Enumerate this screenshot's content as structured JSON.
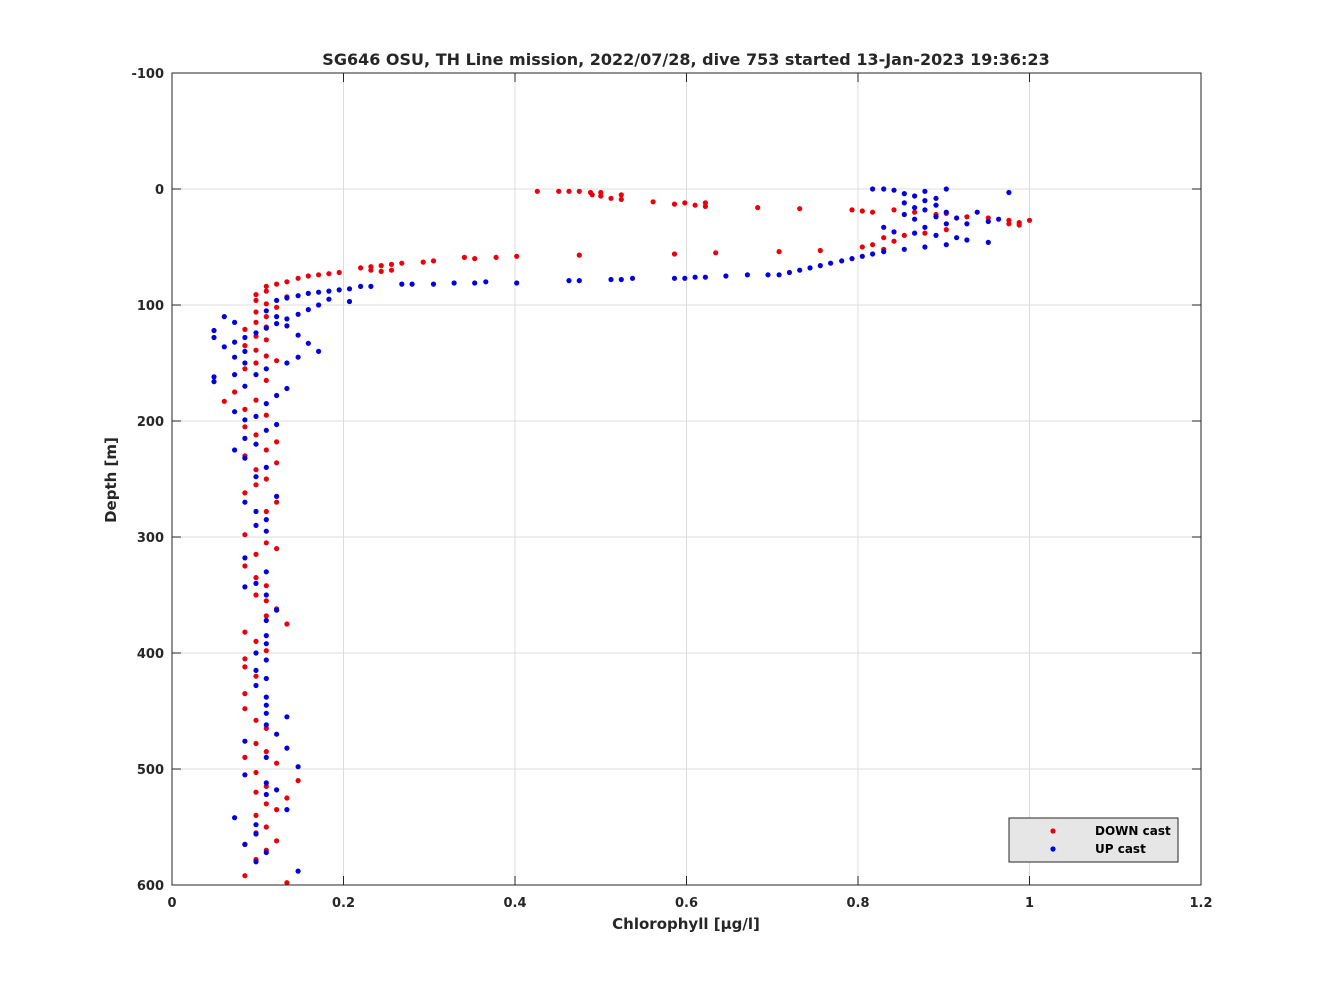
{
  "chart_data": {
    "type": "scatter",
    "title": "SG646 OSU, TH Line mission, 2022/07/28, dive 753 started 13-Jan-2023 19:36:23",
    "xlabel": "Chlorophyll [μg/l]",
    "ylabel": "Depth [m]",
    "xlim": [
      0,
      1.2
    ],
    "ylim": [
      -100,
      600
    ],
    "y_reversed": true,
    "grid": true,
    "legend_position": "bottom-right",
    "x_ticks": [
      "0",
      "0.2",
      "0.4",
      "0.6",
      "0.8",
      "1",
      "1.2"
    ],
    "y_ticks": [
      "-100",
      "0",
      "100",
      "200",
      "300",
      "400",
      "500",
      "600"
    ],
    "series": [
      {
        "name": "DOWN cast",
        "color": "#e8000b",
        "points": [
          [
            0.426,
            2
          ],
          [
            0.451,
            2
          ],
          [
            0.463,
            2
          ],
          [
            0.475,
            2
          ],
          [
            0.488,
            3
          ],
          [
            0.49,
            5
          ],
          [
            0.5,
            3
          ],
          [
            0.5,
            6
          ],
          [
            0.512,
            8
          ],
          [
            0.524,
            5
          ],
          [
            0.524,
            9
          ],
          [
            0.561,
            11
          ],
          [
            0.586,
            13
          ],
          [
            0.598,
            12
          ],
          [
            0.61,
            14
          ],
          [
            0.622,
            12
          ],
          [
            0.622,
            15
          ],
          [
            0.683,
            16
          ],
          [
            0.732,
            17
          ],
          [
            0.793,
            18
          ],
          [
            0.805,
            19
          ],
          [
            0.817,
            20
          ],
          [
            0.842,
            18
          ],
          [
            0.866,
            20
          ],
          [
            0.891,
            22
          ],
          [
            0.903,
            21
          ],
          [
            0.927,
            24
          ],
          [
            0.952,
            25
          ],
          [
            0.976,
            27
          ],
          [
            0.988,
            29
          ],
          [
            1.0,
            27
          ],
          [
            0.976,
            30
          ],
          [
            0.988,
            31
          ],
          [
            0.903,
            35
          ],
          [
            0.878,
            38
          ],
          [
            0.854,
            40
          ],
          [
            0.83,
            42
          ],
          [
            0.842,
            45
          ],
          [
            0.817,
            48
          ],
          [
            0.805,
            50
          ],
          [
            0.83,
            52
          ],
          [
            0.756,
            53
          ],
          [
            0.708,
            54
          ],
          [
            0.634,
            55
          ],
          [
            0.586,
            56
          ],
          [
            0.475,
            57
          ],
          [
            0.402,
            58
          ],
          [
            0.378,
            59
          ],
          [
            0.353,
            60
          ],
          [
            0.341,
            59
          ],
          [
            0.305,
            62
          ],
          [
            0.293,
            63
          ],
          [
            0.268,
            64
          ],
          [
            0.256,
            65
          ],
          [
            0.244,
            66
          ],
          [
            0.232,
            67
          ],
          [
            0.22,
            68
          ],
          [
            0.232,
            70
          ],
          [
            0.244,
            71
          ],
          [
            0.256,
            70
          ],
          [
            0.195,
            72
          ],
          [
            0.183,
            73
          ],
          [
            0.171,
            74
          ],
          [
            0.159,
            75
          ],
          [
            0.147,
            77
          ],
          [
            0.134,
            80
          ],
          [
            0.122,
            82
          ],
          [
            0.11,
            84
          ],
          [
            0.11,
            88
          ],
          [
            0.098,
            91
          ],
          [
            0.134,
            93
          ],
          [
            0.098,
            96
          ],
          [
            0.11,
            99
          ],
          [
            0.122,
            102
          ],
          [
            0.098,
            106
          ],
          [
            0.11,
            110
          ],
          [
            0.098,
            115
          ],
          [
            0.11,
            119
          ],
          [
            0.085,
            121
          ],
          [
            0.098,
            127
          ],
          [
            0.11,
            130
          ],
          [
            0.085,
            135
          ],
          [
            0.098,
            139
          ],
          [
            0.11,
            144
          ],
          [
            0.122,
            148
          ],
          [
            0.098,
            150
          ],
          [
            0.085,
            155
          ],
          [
            0.11,
            165
          ],
          [
            0.073,
            175
          ],
          [
            0.098,
            182
          ],
          [
            0.085,
            190
          ],
          [
            0.061,
            183
          ],
          [
            0.11,
            195
          ],
          [
            0.085,
            205
          ],
          [
            0.098,
            212
          ],
          [
            0.122,
            218
          ],
          [
            0.11,
            225
          ],
          [
            0.085,
            230
          ],
          [
            0.122,
            236
          ],
          [
            0.098,
            242
          ],
          [
            0.11,
            250
          ],
          [
            0.098,
            255
          ],
          [
            0.085,
            262
          ],
          [
            0.122,
            270
          ],
          [
            0.11,
            278
          ],
          [
            0.085,
            298
          ],
          [
            0.11,
            305
          ],
          [
            0.122,
            310
          ],
          [
            0.098,
            315
          ],
          [
            0.085,
            325
          ],
          [
            0.098,
            335
          ],
          [
            0.11,
            342
          ],
          [
            0.098,
            350
          ],
          [
            0.11,
            355
          ],
          [
            0.122,
            362
          ],
          [
            0.11,
            368
          ],
          [
            0.134,
            375
          ],
          [
            0.085,
            382
          ],
          [
            0.098,
            390
          ],
          [
            0.11,
            398
          ],
          [
            0.085,
            405
          ],
          [
            0.085,
            412
          ],
          [
            0.098,
            420
          ],
          [
            0.085,
            435
          ],
          [
            0.085,
            448
          ],
          [
            0.098,
            458
          ],
          [
            0.11,
            465
          ],
          [
            0.098,
            478
          ],
          [
            0.11,
            485
          ],
          [
            0.085,
            490
          ],
          [
            0.122,
            495
          ],
          [
            0.098,
            503
          ],
          [
            0.147,
            510
          ],
          [
            0.11,
            515
          ],
          [
            0.098,
            520
          ],
          [
            0.134,
            525
          ],
          [
            0.11,
            530
          ],
          [
            0.122,
            535
          ],
          [
            0.098,
            540
          ],
          [
            0.11,
            550
          ],
          [
            0.098,
            555
          ],
          [
            0.122,
            562
          ],
          [
            0.085,
            565
          ],
          [
            0.11,
            570
          ],
          [
            0.098,
            578
          ],
          [
            0.085,
            592
          ],
          [
            0.134,
            598
          ]
        ]
      },
      {
        "name": "UP cast",
        "color": "#0000e0",
        "points": [
          [
            0.817,
            0
          ],
          [
            0.83,
            0
          ],
          [
            0.842,
            1
          ],
          [
            0.903,
            0
          ],
          [
            0.878,
            2
          ],
          [
            0.854,
            4
          ],
          [
            0.866,
            6
          ],
          [
            0.891,
            8
          ],
          [
            0.878,
            10
          ],
          [
            0.854,
            12
          ],
          [
            0.891,
            14
          ],
          [
            0.866,
            16
          ],
          [
            0.878,
            18
          ],
          [
            0.903,
            20
          ],
          [
            0.854,
            22
          ],
          [
            0.891,
            24
          ],
          [
            0.915,
            25
          ],
          [
            0.866,
            26
          ],
          [
            0.976,
            3
          ],
          [
            0.939,
            20
          ],
          [
            0.927,
            30
          ],
          [
            0.952,
            28
          ],
          [
            0.964,
            26
          ],
          [
            0.903,
            30
          ],
          [
            0.878,
            33
          ],
          [
            0.83,
            33
          ],
          [
            0.842,
            37
          ],
          [
            0.866,
            38
          ],
          [
            0.891,
            40
          ],
          [
            0.915,
            42
          ],
          [
            0.927,
            44
          ],
          [
            0.952,
            46
          ],
          [
            0.903,
            48
          ],
          [
            0.878,
            50
          ],
          [
            0.854,
            52
          ],
          [
            0.83,
            54
          ],
          [
            0.817,
            56
          ],
          [
            0.805,
            58
          ],
          [
            0.793,
            60
          ],
          [
            0.781,
            62
          ],
          [
            0.768,
            64
          ],
          [
            0.756,
            66
          ],
          [
            0.744,
            68
          ],
          [
            0.732,
            70
          ],
          [
            0.72,
            72
          ],
          [
            0.708,
            74
          ],
          [
            0.695,
            74
          ],
          [
            0.671,
            74
          ],
          [
            0.646,
            75
          ],
          [
            0.622,
            76
          ],
          [
            0.61,
            76
          ],
          [
            0.598,
            77
          ],
          [
            0.586,
            77
          ],
          [
            0.537,
            77
          ],
          [
            0.524,
            78
          ],
          [
            0.512,
            78
          ],
          [
            0.475,
            79
          ],
          [
            0.463,
            79
          ],
          [
            0.402,
            81
          ],
          [
            0.366,
            80
          ],
          [
            0.353,
            81
          ],
          [
            0.329,
            81
          ],
          [
            0.305,
            82
          ],
          [
            0.28,
            82
          ],
          [
            0.268,
            82
          ],
          [
            0.232,
            84
          ],
          [
            0.22,
            84
          ],
          [
            0.207,
            86
          ],
          [
            0.195,
            87
          ],
          [
            0.183,
            88
          ],
          [
            0.171,
            89
          ],
          [
            0.159,
            90
          ],
          [
            0.147,
            92
          ],
          [
            0.134,
            94
          ],
          [
            0.122,
            96
          ],
          [
            0.207,
            97
          ],
          [
            0.183,
            95
          ],
          [
            0.171,
            100
          ],
          [
            0.159,
            104
          ],
          [
            0.147,
            108
          ],
          [
            0.134,
            112
          ],
          [
            0.122,
            116
          ],
          [
            0.11,
            120
          ],
          [
            0.098,
            124
          ],
          [
            0.085,
            128
          ],
          [
            0.073,
            132
          ],
          [
            0.061,
            136
          ],
          [
            0.085,
            140
          ],
          [
            0.073,
            145
          ],
          [
            0.085,
            150
          ],
          [
            0.049,
            128
          ],
          [
            0.049,
            122
          ],
          [
            0.061,
            110
          ],
          [
            0.073,
            115
          ],
          [
            0.11,
            105
          ],
          [
            0.122,
            110
          ],
          [
            0.134,
            118
          ],
          [
            0.147,
            126
          ],
          [
            0.159,
            133
          ],
          [
            0.171,
            140
          ],
          [
            0.147,
            145
          ],
          [
            0.134,
            150
          ],
          [
            0.11,
            155
          ],
          [
            0.098,
            160
          ],
          [
            0.049,
            162
          ],
          [
            0.049,
            166
          ],
          [
            0.073,
            160
          ],
          [
            0.085,
            170
          ],
          [
            0.134,
            172
          ],
          [
            0.122,
            178
          ],
          [
            0.11,
            185
          ],
          [
            0.073,
            192
          ],
          [
            0.085,
            199
          ],
          [
            0.098,
            196
          ],
          [
            0.11,
            208
          ],
          [
            0.122,
            203
          ],
          [
            0.085,
            215
          ],
          [
            0.098,
            220
          ],
          [
            0.073,
            225
          ],
          [
            0.085,
            232
          ],
          [
            0.11,
            240
          ],
          [
            0.098,
            248
          ],
          [
            0.122,
            265
          ],
          [
            0.085,
            270
          ],
          [
            0.098,
            278
          ],
          [
            0.11,
            285
          ],
          [
            0.098,
            290
          ],
          [
            0.11,
            295
          ],
          [
            0.085,
            318
          ],
          [
            0.11,
            330
          ],
          [
            0.098,
            340
          ],
          [
            0.085,
            343
          ],
          [
            0.11,
            350
          ],
          [
            0.122,
            363
          ],
          [
            0.11,
            372
          ],
          [
            0.11,
            385
          ],
          [
            0.11,
            392
          ],
          [
            0.098,
            400
          ],
          [
            0.11,
            406
          ],
          [
            0.098,
            415
          ],
          [
            0.11,
            422
          ],
          [
            0.098,
            428
          ],
          [
            0.11,
            438
          ],
          [
            0.11,
            445
          ],
          [
            0.11,
            452
          ],
          [
            0.134,
            455
          ],
          [
            0.11,
            462
          ],
          [
            0.122,
            470
          ],
          [
            0.085,
            476
          ],
          [
            0.134,
            482
          ],
          [
            0.11,
            490
          ],
          [
            0.147,
            498
          ],
          [
            0.085,
            505
          ],
          [
            0.11,
            512
          ],
          [
            0.122,
            518
          ],
          [
            0.11,
            522
          ],
          [
            0.134,
            535
          ],
          [
            0.073,
            542
          ],
          [
            0.098,
            548
          ],
          [
            0.098,
            556
          ],
          [
            0.11,
            572
          ],
          [
            0.085,
            565
          ],
          [
            0.098,
            580
          ],
          [
            0.147,
            588
          ]
        ]
      }
    ]
  }
}
